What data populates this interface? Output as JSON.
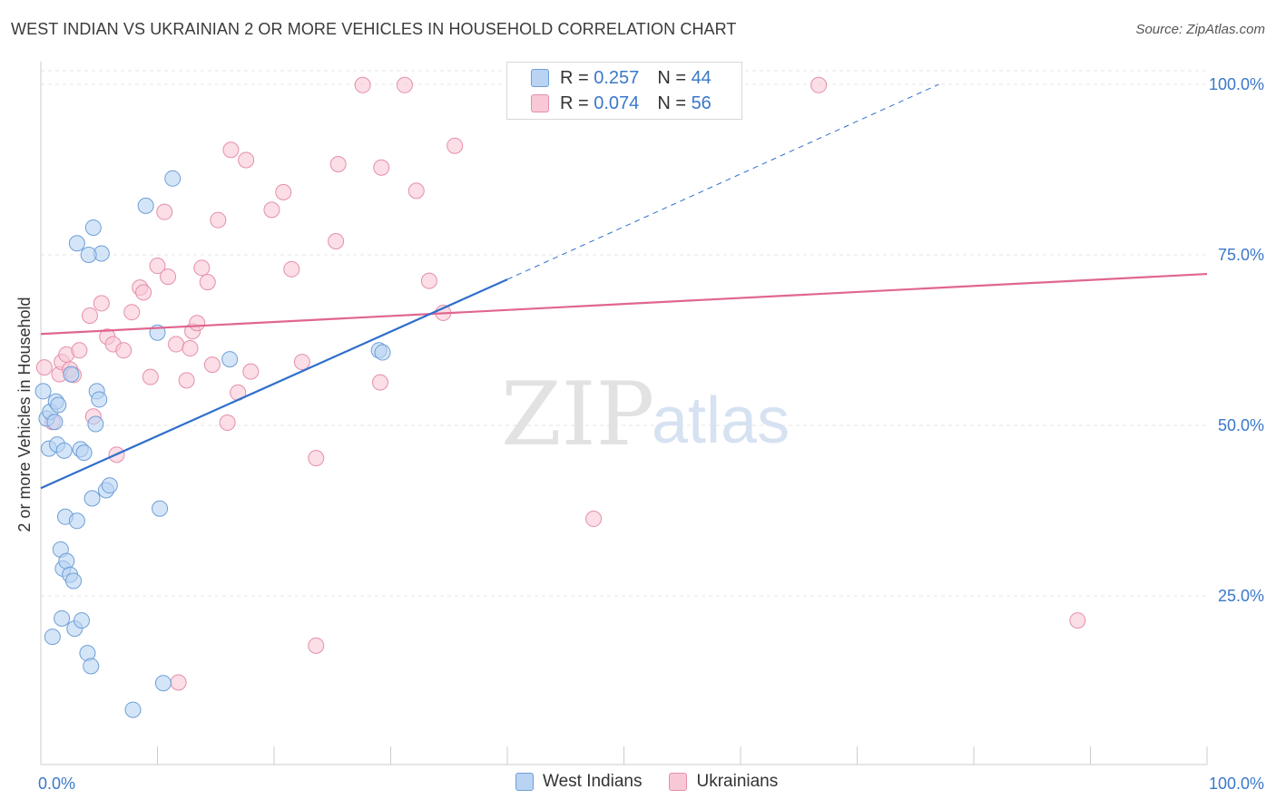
{
  "title": "WEST INDIAN VS UKRAINIAN 2 OR MORE VEHICLES IN HOUSEHOLD CORRELATION CHART",
  "source": "Source: ZipAtlas.com",
  "watermark": {
    "zip": "ZIP",
    "atlas": "atlas"
  },
  "legend": {
    "r_label": "R =",
    "n_label": "N =",
    "rows": [
      {
        "name": "West Indians",
        "r": "0.257",
        "n": "44"
      },
      {
        "name": "Ukrainians",
        "r": "0.074",
        "n": "56"
      }
    ]
  },
  "colors": {
    "west_fill": "#b9d3f3",
    "west_stroke": "#6d9fd8",
    "west_line": "#2f6fcc",
    "ukr_fill": "#f8c8d6",
    "ukr_stroke": "#e58fab",
    "ukr_line": "#e0668f",
    "axis_label": "#3a78c9",
    "grid": "#e4e4e4"
  },
  "chart_data": {
    "type": "scatter",
    "title": "WEST INDIAN VS UKRAINIAN 2 OR MORE VEHICLES IN HOUSEHOLD CORRELATION CHART",
    "ylabel": "2 or more Vehicles in Household",
    "xlabel": "",
    "xlim": [
      0,
      100
    ],
    "ylim": [
      0,
      102
    ],
    "x_tick_labels": [
      "0.0%",
      "100.0%"
    ],
    "y_ticks": [
      25,
      50,
      75,
      100
    ],
    "y_tick_labels": [
      "25.0%",
      "50.0%",
      "75.0%",
      "100.0%"
    ],
    "series": [
      {
        "name": "West Indians",
        "trend": {
          "x0": 0,
          "y0": 40.8,
          "x1": 40,
          "y1": 71.4,
          "dashed_to_x": 77,
          "dashed_to_y": 100
        },
        "points": [
          [
            0.2,
            55.0
          ],
          [
            0.5,
            51.0
          ],
          [
            0.7,
            46.6
          ],
          [
            0.8,
            52.0
          ],
          [
            1.0,
            19.0
          ],
          [
            1.3,
            53.5
          ],
          [
            1.5,
            53.0
          ],
          [
            1.4,
            47.2
          ],
          [
            1.7,
            31.8
          ],
          [
            1.8,
            21.7
          ],
          [
            1.9,
            29.0
          ],
          [
            2.1,
            36.6
          ],
          [
            2.2,
            30.1
          ],
          [
            2.5,
            28.1
          ],
          [
            2.6,
            57.5
          ],
          [
            2.8,
            27.2
          ],
          [
            2.9,
            20.2
          ],
          [
            3.1,
            36.0
          ],
          [
            3.4,
            46.5
          ],
          [
            3.5,
            21.4
          ],
          [
            3.7,
            46.0
          ],
          [
            4.0,
            16.6
          ],
          [
            4.3,
            14.7
          ],
          [
            4.4,
            39.3
          ],
          [
            4.5,
            79.0
          ],
          [
            4.7,
            50.2
          ],
          [
            4.8,
            55.0
          ],
          [
            5.0,
            53.8
          ],
          [
            5.2,
            75.2
          ],
          [
            3.1,
            76.7
          ],
          [
            5.6,
            40.5
          ],
          [
            5.9,
            41.2
          ],
          [
            7.9,
            8.3
          ],
          [
            9.0,
            82.2
          ],
          [
            10.0,
            63.6
          ],
          [
            10.2,
            37.8
          ],
          [
            10.5,
            12.2
          ],
          [
            11.3,
            86.2
          ],
          [
            16.2,
            59.7
          ],
          [
            29.0,
            61.0
          ],
          [
            29.3,
            60.7
          ],
          [
            1.2,
            50.5
          ],
          [
            2.0,
            46.3
          ],
          [
            4.1,
            75.0
          ]
        ]
      },
      {
        "name": "Ukrainians",
        "trend": {
          "x0": 0,
          "y0": 63.4,
          "x1": 100,
          "y1": 72.2
        },
        "points": [
          [
            0.3,
            58.5
          ],
          [
            1.0,
            50.5
          ],
          [
            1.6,
            57.5
          ],
          [
            1.8,
            59.3
          ],
          [
            2.2,
            60.4
          ],
          [
            2.5,
            58.2
          ],
          [
            2.8,
            57.4
          ],
          [
            3.3,
            61.0
          ],
          [
            4.2,
            66.1
          ],
          [
            4.5,
            51.3
          ],
          [
            5.2,
            67.9
          ],
          [
            5.7,
            63.0
          ],
          [
            6.2,
            61.9
          ],
          [
            6.5,
            45.7
          ],
          [
            7.1,
            61.0
          ],
          [
            7.8,
            66.6
          ],
          [
            8.5,
            70.2
          ],
          [
            8.8,
            69.5
          ],
          [
            9.4,
            57.1
          ],
          [
            10.0,
            73.4
          ],
          [
            10.6,
            81.3
          ],
          [
            10.9,
            71.8
          ],
          [
            11.6,
            61.9
          ],
          [
            11.8,
            12.3
          ],
          [
            12.5,
            56.6
          ],
          [
            12.8,
            61.3
          ],
          [
            13.0,
            63.8
          ],
          [
            13.4,
            65.0
          ],
          [
            13.8,
            73.1
          ],
          [
            14.3,
            71.0
          ],
          [
            14.7,
            58.9
          ],
          [
            15.2,
            80.1
          ],
          [
            16.0,
            50.4
          ],
          [
            16.3,
            90.4
          ],
          [
            16.9,
            54.8
          ],
          [
            17.6,
            88.9
          ],
          [
            18.0,
            57.9
          ],
          [
            19.8,
            81.6
          ],
          [
            20.8,
            84.2
          ],
          [
            21.5,
            72.9
          ],
          [
            22.4,
            59.3
          ],
          [
            23.6,
            17.7
          ],
          [
            23.6,
            45.2
          ],
          [
            25.3,
            77.0
          ],
          [
            25.5,
            88.3
          ],
          [
            27.6,
            99.9
          ],
          [
            29.1,
            56.3
          ],
          [
            29.2,
            87.8
          ],
          [
            31.2,
            99.9
          ],
          [
            32.2,
            84.4
          ],
          [
            33.3,
            71.2
          ],
          [
            34.5,
            66.5
          ],
          [
            35.5,
            91.0
          ],
          [
            47.4,
            36.3
          ],
          [
            66.7,
            99.9
          ],
          [
            88.9,
            21.4
          ]
        ]
      }
    ]
  }
}
